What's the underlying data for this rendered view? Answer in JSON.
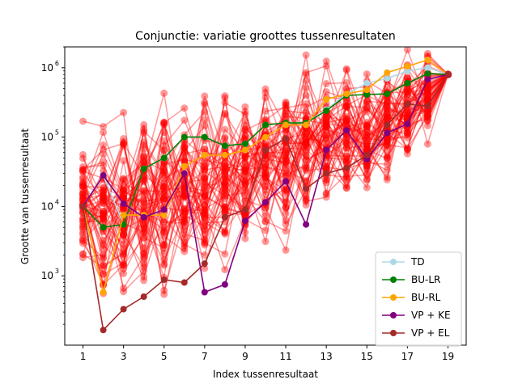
{
  "chart_data": {
    "type": "line",
    "title": "Conjunctie: variatie groottes tussenresultaten",
    "xlabel": "Index tussenresultaat",
    "ylabel": "Grootte van tussenresultaat",
    "xscale": "linear",
    "yscale": "log",
    "xlim": [
      0.1,
      19.9
    ],
    "ylim": [
      100,
      2000000
    ],
    "xticks": [
      1,
      3,
      5,
      7,
      9,
      11,
      13,
      15,
      17,
      19
    ],
    "xtick_labels": [
      "1",
      "3",
      "5",
      "7",
      "9",
      "11",
      "13",
      "15",
      "17",
      "19"
    ],
    "yticks": [
      1000,
      10000,
      100000,
      1000000
    ],
    "ytick_labels": [
      "10",
      "10",
      "10",
      "10"
    ],
    "ytick_exponents": [
      "3",
      "4",
      "5",
      "6"
    ],
    "grid": false,
    "legend_position": "lower-right",
    "background_lines": {
      "color": "#ff0000",
      "opacity": 0.4,
      "count": 60,
      "note_visible": "many red runs drawn semi-transparent"
    },
    "series": [
      {
        "name": "TD",
        "color": "#add8e6",
        "x": [
          1,
          2,
          3,
          4,
          5,
          6,
          7,
          8,
          9,
          10,
          11,
          12,
          13,
          14,
          15,
          16,
          17,
          18,
          19
        ],
        "y": [
          10000,
          28000,
          5500,
          35000,
          50000,
          100000,
          100000,
          75000,
          80000,
          150000,
          160000,
          160000,
          250000,
          420000,
          600000,
          700000,
          900000,
          1000000,
          800000
        ]
      },
      {
        "name": "BU-LR",
        "color": "#008000",
        "x": [
          1,
          2,
          3,
          4,
          5,
          6,
          7,
          8,
          9,
          10,
          11,
          12,
          13,
          14,
          15,
          16,
          17,
          18,
          19
        ],
        "y": [
          10000,
          5000,
          5500,
          35000,
          50000,
          100000,
          100000,
          75000,
          80000,
          150000,
          160000,
          160000,
          240000,
          400000,
          410000,
          420000,
          600000,
          820000,
          800000
        ]
      },
      {
        "name": "BU-RL",
        "color": "#ffa500",
        "x": [
          1,
          2,
          3,
          4,
          5,
          6,
          7,
          8,
          9,
          10,
          11,
          12,
          13,
          14,
          15,
          16,
          17,
          18,
          19
        ],
        "y": [
          10000,
          580,
          7500,
          7500,
          7500,
          38000,
          55000,
          55000,
          65000,
          100000,
          150000,
          150000,
          350000,
          420000,
          480000,
          850000,
          1050000,
          1300000,
          800000
        ]
      },
      {
        "name": "VP + KE",
        "color": "#800080",
        "x": [
          1,
          2,
          3,
          4,
          5,
          6,
          7,
          8,
          9,
          10,
          11,
          12,
          13,
          14,
          15,
          16,
          17,
          18,
          19
        ],
        "y": [
          10000,
          28000,
          11000,
          7000,
          9000,
          30000,
          580,
          750,
          6200,
          11500,
          23000,
          5500,
          65000,
          125000,
          48000,
          115000,
          155000,
          680000,
          800000
        ]
      },
      {
        "name": "VP + EL",
        "color": "#a52a2a",
        "x": [
          1,
          2,
          3,
          4,
          5,
          6,
          7,
          8,
          9,
          10,
          11,
          12,
          13,
          14,
          15,
          16,
          17,
          18,
          19
        ],
        "y": [
          10000,
          165,
          330,
          500,
          880,
          800,
          1500,
          7000,
          9000,
          65000,
          95000,
          18000,
          30000,
          36000,
          55000,
          150000,
          300000,
          280000,
          800000
        ]
      }
    ]
  }
}
